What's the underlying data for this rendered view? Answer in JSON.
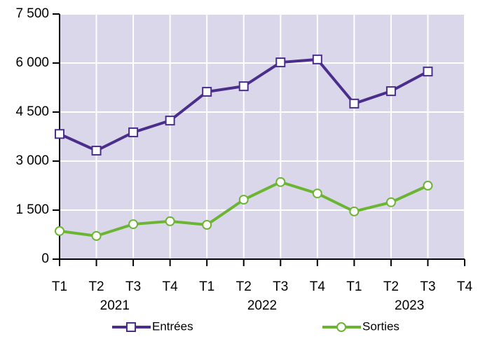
{
  "chart_data": {
    "type": "line",
    "categories": [
      "T1",
      "T2",
      "T3",
      "T4",
      "T1",
      "T2",
      "T3",
      "T4",
      "T1",
      "T2",
      "T3",
      "T4"
    ],
    "years": [
      "2021",
      "2022",
      "2023"
    ],
    "series": [
      {
        "name": "Entrées",
        "color": "#4b2e8c",
        "marker": "square",
        "values": [
          3830,
          3320,
          3880,
          4240,
          5120,
          5290,
          6020,
          6110,
          4760,
          5140,
          5740,
          null
        ]
      },
      {
        "name": "Sorties",
        "color": "#6cb533",
        "marker": "circle",
        "values": [
          860,
          710,
          1070,
          1160,
          1050,
          1820,
          2360,
          2010,
          1460,
          1740,
          2250,
          null
        ]
      }
    ],
    "ylim": [
      0,
      7500
    ],
    "yticks": [
      0,
      {
        "value": 1500,
        "label": "1 500"
      },
      {
        "value": 3000,
        "label": "3 000"
      },
      {
        "value": 4500,
        "label": "4 500"
      },
      {
        "value": 6000,
        "label": "6 000"
      },
      {
        "value": 7500,
        "label": "7 500"
      }
    ],
    "grid": true,
    "legend": "bottom"
  }
}
